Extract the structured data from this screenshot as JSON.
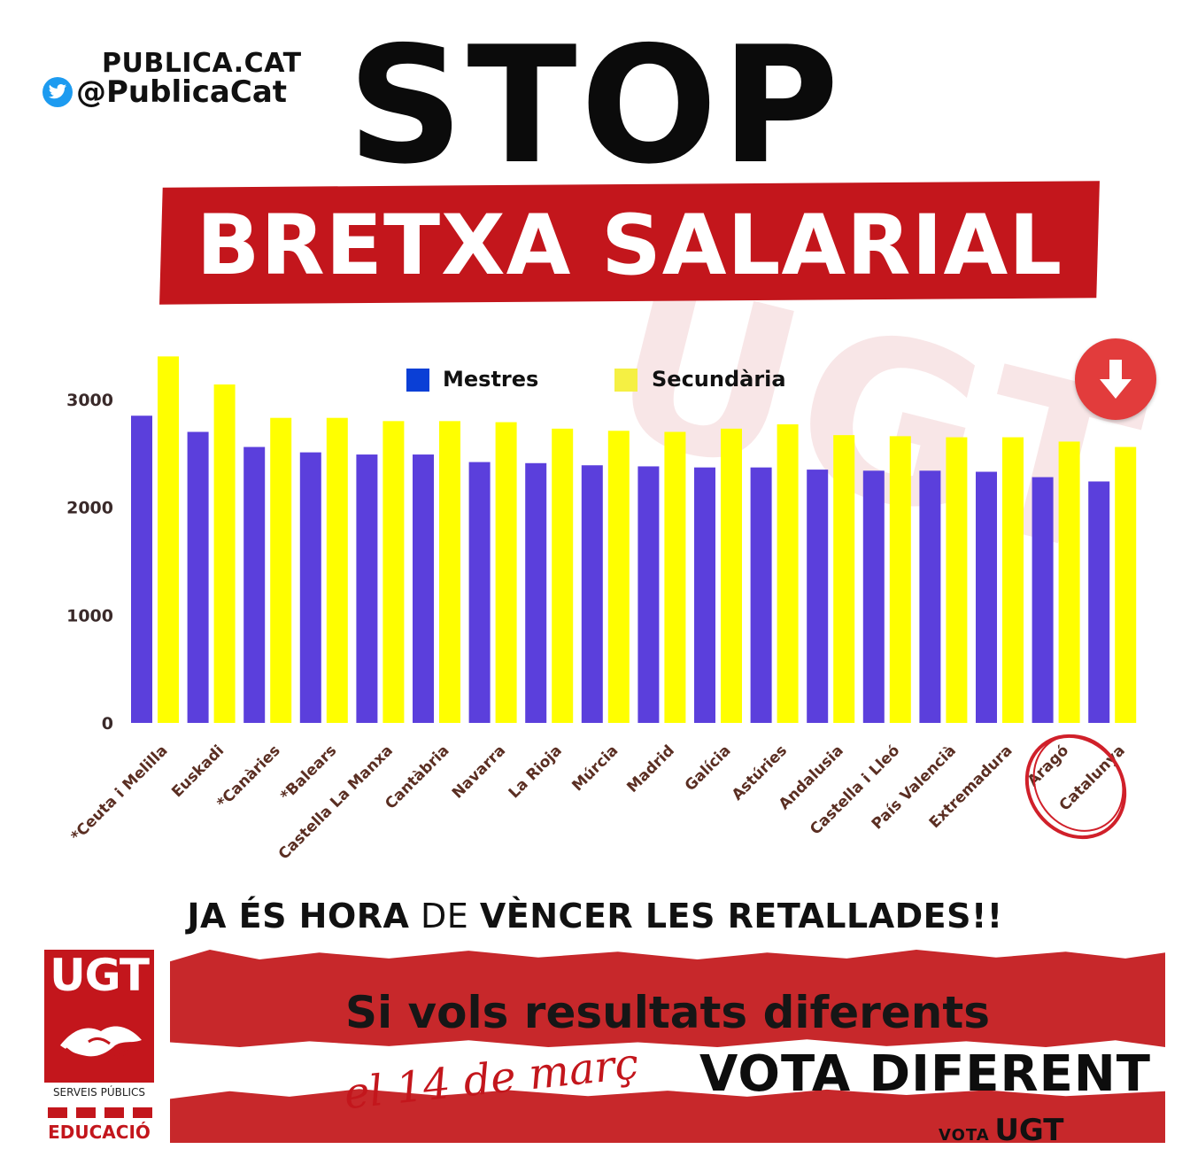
{
  "brand": {
    "site": "PUBLICA.CAT",
    "handle": "@PublicaCat",
    "twitter_icon": "twitter-bird-icon",
    "twitter_color": "#1d9bf0"
  },
  "header": {
    "title": "STOP",
    "subtitle": "BRETXA SALARIAL",
    "watermark": "UGT"
  },
  "colors": {
    "accent": "#c3161c",
    "mestres": "#5b3fdc",
    "secundaria": "#ffff00",
    "legend_mestres": "#0a3fd6",
    "legend_secundaria": "#f5f043"
  },
  "badge": {
    "icon": "down-arrow-icon"
  },
  "chart_data": {
    "type": "bar",
    "categories": [
      "*Ceuta i Melilla",
      "Euskadi",
      "*Canàries",
      "*Balears",
      "Castella La Manxa",
      "Cantàbria",
      "Navarra",
      "La Rioja",
      "Múrcia",
      "Madrid",
      "Galícia",
      "Astúries",
      "Andalusia",
      "Castella i Lleó",
      "País Valencià",
      "Extremadura",
      "Aragó",
      "Catalunya"
    ],
    "series": [
      {
        "name": "Mestres",
        "values": [
          2850,
          2700,
          2560,
          2510,
          2490,
          2490,
          2420,
          2410,
          2390,
          2380,
          2370,
          2370,
          2350,
          2340,
          2340,
          2330,
          2280,
          2240
        ]
      },
      {
        "name": "Secundària",
        "values": [
          3400,
          3140,
          2830,
          2830,
          2800,
          2800,
          2790,
          2730,
          2710,
          2700,
          2730,
          2770,
          2670,
          2660,
          2650,
          2650,
          2610,
          2560
        ]
      }
    ],
    "yticks": [
      "0",
      "1000",
      "2000",
      "3000"
    ],
    "ylim": [
      0,
      3500
    ],
    "legend_position": "top-center",
    "highlight": "Catalunya",
    "grid": false
  },
  "slogan": {
    "part1": "JA ÉS HORA",
    "part2": " DE ",
    "part3": "VÈNCER LES RETALLADES!!"
  },
  "cta": {
    "line1": "Si vols resultats diferents",
    "date": "el 14 de març",
    "line2": "VOTA DIFERENT",
    "vota_small": "VOTA",
    "vota_big": "UGT"
  },
  "logo": {
    "title": "UGT",
    "hands_icon": "handshake-icon",
    "serveis": "SERVEIS PÚBLICS",
    "educacio": "EDUCACIÓ"
  }
}
